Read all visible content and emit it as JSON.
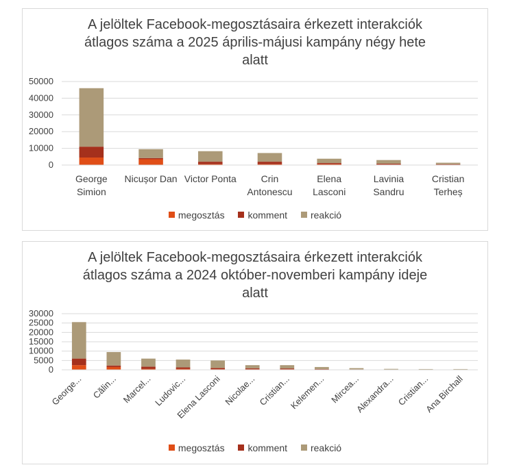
{
  "legend": {
    "items": [
      {
        "label": "megosztás",
        "color": "#e04e17"
      },
      {
        "label": "komment",
        "color": "#a5301c"
      },
      {
        "label": "reakció",
        "color": "#ac9a78"
      }
    ]
  },
  "chart_data": [
    {
      "type": "bar",
      "stacked": true,
      "title_lines": [
        "A jelöltek Facebook-megosztásaira érkezett interakciók",
        "átlagos száma a 2025 április-májusi kampány négy hete",
        "alatt"
      ],
      "categories": [
        [
          "George",
          "Simion"
        ],
        [
          "Nicușor Dan"
        ],
        [
          "Victor Ponta"
        ],
        [
          "Crin",
          "Antonescu"
        ],
        [
          "Elena",
          "Lasconi"
        ],
        [
          "Lavinia",
          "Sandru"
        ],
        [
          "Cristian",
          "Terheș"
        ]
      ],
      "series": [
        {
          "name": "megosztás",
          "values": [
            4500,
            3500,
            500,
            500,
            500,
            300,
            200
          ]
        },
        {
          "name": "komment",
          "values": [
            6500,
            700,
            1500,
            1500,
            700,
            500,
            300
          ]
        },
        {
          "name": "reakció",
          "values": [
            35000,
            5300,
            6300,
            5200,
            2600,
            2200,
            900
          ]
        }
      ],
      "ylim": [
        0,
        50000
      ],
      "yticks": [
        0,
        10000,
        20000,
        30000,
        40000,
        50000
      ],
      "grid": true,
      "legend_position": "bottom"
    },
    {
      "type": "bar",
      "stacked": true,
      "title_lines": [
        "A jelöltek Facebook-megosztásaira érkezett interakciók",
        "átlagos száma a 2024 október-novemberi kampány ideje",
        "alatt"
      ],
      "categories": [
        "George...",
        "Călin...",
        "Marcel...",
        "Ludovic...",
        "Elena Lasconi",
        "Nicolae...",
        "Cristian...",
        "Kelemen...",
        "Mircea...",
        "Alexandra...",
        "Cristian...",
        "Ana Birchall"
      ],
      "series": [
        {
          "name": "megosztás",
          "values": [
            2500,
            1500,
            500,
            500,
            300,
            300,
            300,
            200,
            100,
            50,
            50,
            50
          ]
        },
        {
          "name": "komment",
          "values": [
            3500,
            800,
            1200,
            800,
            700,
            500,
            400,
            200,
            150,
            100,
            50,
            50
          ]
        },
        {
          "name": "reakció",
          "values": [
            19500,
            7200,
            4300,
            4200,
            4000,
            1700,
            1800,
            1100,
            650,
            350,
            300,
            300
          ]
        }
      ],
      "ylim": [
        0,
        30000
      ],
      "yticks": [
        0,
        5000,
        10000,
        15000,
        20000,
        25000,
        30000
      ],
      "grid": true,
      "legend_position": "bottom"
    }
  ]
}
